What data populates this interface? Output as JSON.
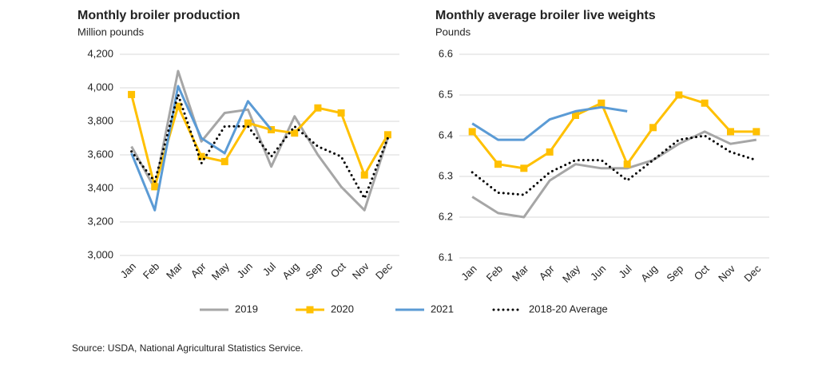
{
  "chart_data": [
    {
      "type": "line",
      "title": "Monthly broiler production",
      "subtitle": "Million pounds",
      "categories": [
        "Jan",
        "Feb",
        "Mar",
        "Apr",
        "May",
        "Jun",
        "Jul",
        "Aug",
        "Sep",
        "Oct",
        "Nov",
        "Dec"
      ],
      "ylim": [
        3000,
        4200
      ],
      "yticks": [
        {
          "value": 3000,
          "label": "3,000"
        },
        {
          "value": 3200,
          "label": "3,200"
        },
        {
          "value": 3400,
          "label": "3,400"
        },
        {
          "value": 3600,
          "label": "3,600"
        },
        {
          "value": 3800,
          "label": "3,800"
        },
        {
          "value": 4000,
          "label": "4,000"
        },
        {
          "value": 4200,
          "label": "4,200"
        }
      ],
      "grid": true,
      "series": [
        {
          "name": "2019",
          "color": "#a6a6a6",
          "values": [
            3650,
            3400,
            4100,
            3680,
            3850,
            3870,
            3530,
            3830,
            3600,
            3410,
            3270,
            3700
          ]
        },
        {
          "name": "2020",
          "color": "#ffc000",
          "marker": "square",
          "values": [
            3960,
            3410,
            3890,
            3590,
            3560,
            3790,
            3750,
            3730,
            3880,
            3850,
            3480,
            3720
          ]
        },
        {
          "name": "2021",
          "color": "#5b9bd5",
          "values": [
            3610,
            3270,
            4010,
            3700,
            3610,
            3920,
            3750,
            null,
            null,
            null,
            null,
            null
          ]
        },
        {
          "name": "2018-20 Average",
          "color": "#000000",
          "dash": "dotted",
          "values": [
            3620,
            3440,
            3960,
            3550,
            3770,
            3770,
            3590,
            3770,
            3650,
            3590,
            3340,
            3700
          ]
        }
      ]
    },
    {
      "type": "line",
      "title": "Monthly average broiler live weights",
      "subtitle": "Pounds",
      "categories": [
        "Jan",
        "Feb",
        "Mar",
        "Apr",
        "May",
        "Jun",
        "Jul",
        "Aug",
        "Sep",
        "Oct",
        "Nov",
        "Dec"
      ],
      "ylim": [
        6.1,
        6.6
      ],
      "yticks": [
        6.1,
        6.2,
        6.3,
        6.4,
        6.5,
        6.6
      ],
      "grid": true,
      "series": [
        {
          "color": "#a6a6a6",
          "values": [
            6.25,
            6.21,
            6.2,
            6.29,
            6.33,
            6.32,
            6.32,
            6.34,
            6.38,
            6.41,
            6.38,
            6.39
          ]
        },
        {
          "color": "#ffc000",
          "marker": "square",
          "values": [
            6.41,
            6.33,
            6.32,
            6.36,
            6.45,
            6.48,
            6.33,
            6.42,
            6.5,
            6.48,
            6.41,
            6.41
          ]
        },
        {
          "color": "#5b9bd5",
          "values": [
            6.43,
            6.39,
            6.39,
            6.44,
            6.46,
            6.47,
            6.46,
            null,
            null,
            null,
            null,
            null
          ]
        },
        {
          "color": "#000000",
          "dash": "dotted",
          "values": [
            6.31,
            6.26,
            6.255,
            6.31,
            6.34,
            6.34,
            6.29,
            6.34,
            6.39,
            6.4,
            6.36,
            6.34
          ]
        }
      ]
    }
  ],
  "source": "Source: USDA, National Agricultural Statistics Service."
}
